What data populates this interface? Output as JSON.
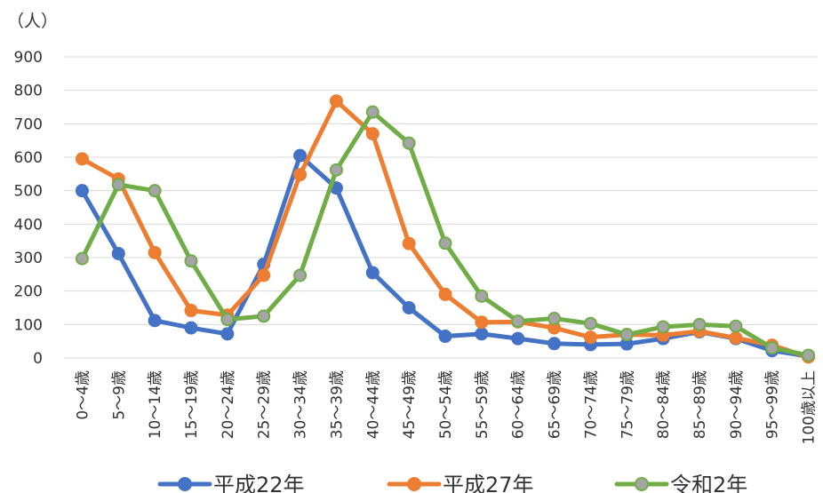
{
  "chart_data": {
    "type": "line",
    "unit_label": "（人）",
    "categories": [
      "0～4歳",
      "5～9歳",
      "10～14歳",
      "15～19歳",
      "20～24歳",
      "25～29歳",
      "30～34歳",
      "35～39歳",
      "40～44歳",
      "45～49歳",
      "50～54歳",
      "55～59歳",
      "60～64歳",
      "65～69歳",
      "70～74歳",
      "75～79歳",
      "80～84歳",
      "85～89歳",
      "90～94歳",
      "95～99歳",
      "100歳以上"
    ],
    "yticks": [
      "0",
      "100",
      "200",
      "300",
      "400",
      "500",
      "600",
      "700",
      "800",
      "900"
    ],
    "ylim": [
      0,
      900
    ],
    "grid": true,
    "legend_position": "bottom",
    "series": [
      {
        "name": "平成22年",
        "color": "#4472c4",
        "marker_fill": "#4472c4",
        "values": [
          500,
          312,
          112,
          90,
          72,
          280,
          605,
          508,
          255,
          150,
          65,
          72,
          58,
          43,
          40,
          42,
          58,
          78,
          58,
          22,
          5
        ]
      },
      {
        "name": "平成27年",
        "color": "#ed7d31",
        "marker_fill": "#ed7d31",
        "values": [
          595,
          535,
          315,
          142,
          128,
          247,
          548,
          768,
          670,
          342,
          190,
          107,
          108,
          90,
          62,
          70,
          68,
          80,
          60,
          38,
          3
        ]
      },
      {
        "name": "令和2年",
        "color": "#70ad47",
        "marker_fill": "#a5a5a5",
        "values": [
          297,
          518,
          500,
          290,
          115,
          125,
          247,
          562,
          735,
          642,
          343,
          185,
          110,
          118,
          103,
          70,
          93,
          100,
          95,
          30,
          8
        ]
      }
    ]
  }
}
